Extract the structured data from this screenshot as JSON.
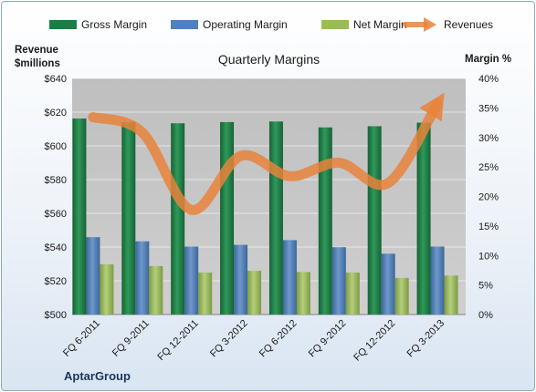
{
  "chart_data": {
    "type": "bar",
    "title": "Quarterly Margins",
    "company": "AptarGroup",
    "categories": [
      "FQ 6-2011",
      "FQ 9-2011",
      "FQ 12-2011",
      "FQ 3-2012",
      "FQ 6-2012",
      "FQ 9-2012",
      "FQ 12-2012",
      "FQ 3-2013"
    ],
    "y_left": {
      "label_line1": "Revenue",
      "label_line2": "$millions",
      "range": [
        500,
        640
      ],
      "ticks": [
        500,
        520,
        540,
        560,
        580,
        600,
        620,
        640
      ],
      "tick_labels": [
        "$500",
        "$520",
        "$540",
        "$560",
        "$580",
        "$600",
        "$620",
        "$640"
      ]
    },
    "y_right": {
      "label": "Margin %",
      "range": [
        0,
        40
      ],
      "ticks": [
        0,
        5,
        10,
        15,
        20,
        25,
        30,
        35,
        40
      ],
      "tick_labels": [
        "0%",
        "5%",
        "10%",
        "15%",
        "20%",
        "25%",
        "30%",
        "35%",
        "40%"
      ]
    },
    "series": [
      {
        "name": "Gross Margin",
        "type": "bar",
        "axis": "right",
        "color": "#1e7b45",
        "values": [
          33.2,
          32.6,
          32.4,
          32.6,
          32.7,
          31.7,
          31.9,
          32.5
        ]
      },
      {
        "name": "Operating Margin",
        "type": "bar",
        "axis": "right",
        "color": "#4f81bd",
        "values": [
          13.1,
          12.4,
          11.5,
          11.8,
          12.6,
          11.4,
          10.3,
          11.5
        ]
      },
      {
        "name": "Net Margin",
        "type": "bar",
        "axis": "right",
        "color": "#9bbb59",
        "values": [
          8.5,
          8.2,
          7.1,
          7.4,
          7.2,
          7.1,
          6.2,
          6.6
        ]
      },
      {
        "name": "Revenues",
        "type": "line",
        "axis": "left",
        "color": "#e8823b",
        "values": [
          617,
          608,
          562,
          594,
          582,
          590,
          578,
          625
        ]
      }
    ],
    "grid": true,
    "legend_position": "top"
  }
}
